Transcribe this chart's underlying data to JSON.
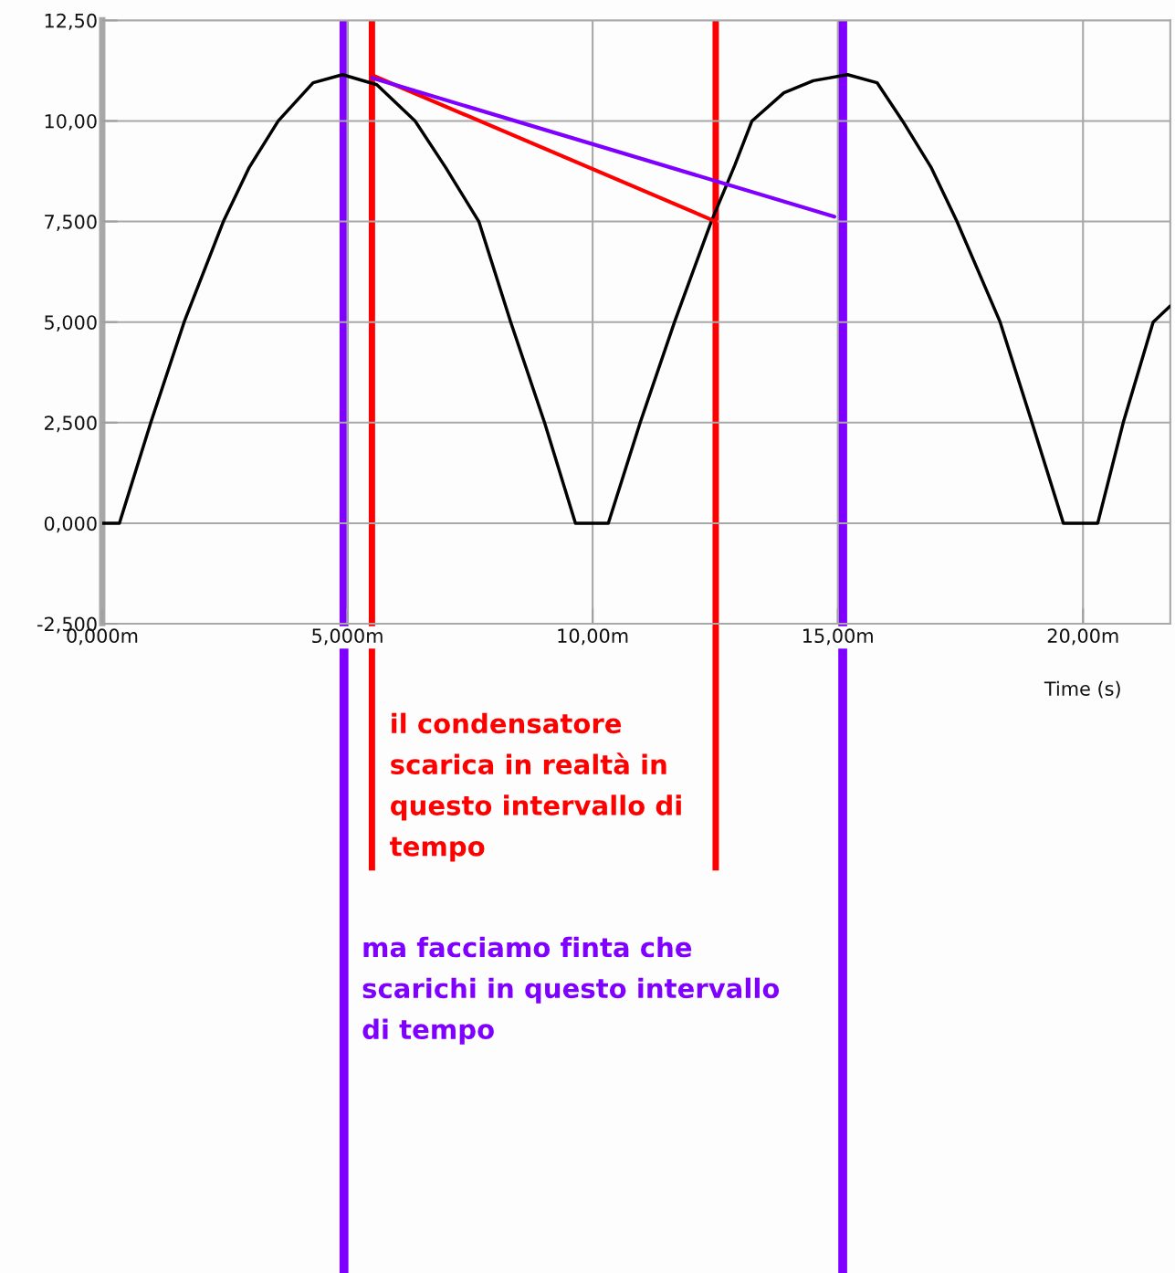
{
  "chart_data": {
    "type": "line",
    "xlabel": "Time (s)",
    "xlim": [
      0,
      21.78
    ],
    "ylim": [
      -2.5,
      12.5
    ],
    "xticks": [
      {
        "value": 0,
        "label": "0,000m"
      },
      {
        "value": 5,
        "label": "5,000m"
      },
      {
        "value": 10,
        "label": "10,00m"
      },
      {
        "value": 15,
        "label": "15,00m"
      },
      {
        "value": 20,
        "label": "20,00m"
      }
    ],
    "yticks": [
      {
        "value": -2.5,
        "label": "-2,500"
      },
      {
        "value": 0,
        "label": "0,000"
      },
      {
        "value": 2.5,
        "label": "2,500"
      },
      {
        "value": 5,
        "label": "5,000"
      },
      {
        "value": 7.5,
        "label": "7,500"
      },
      {
        "value": 10,
        "label": "10,00"
      },
      {
        "value": 12.5,
        "label": "12,50"
      }
    ],
    "grid": true,
    "series": [
      {
        "color": "#000000",
        "x": [
          0,
          0.35,
          0.99,
          1.67,
          2.47,
          3.0,
          3.59,
          4.3,
          4.9,
          5.6,
          6.38,
          7.0,
          7.68,
          8.33,
          9.02,
          9.65,
          10.32,
          10.97,
          11.67,
          12.42,
          12.9,
          13.25,
          13.9,
          14.5,
          15.2,
          15.8,
          16.32,
          16.9,
          17.43,
          18.31,
          18.96,
          19.6,
          20.3,
          20.82,
          21.43,
          21.78
        ],
        "values": [
          0,
          0,
          2.5,
          5.0,
          7.5,
          8.85,
          10.0,
          10.95,
          11.15,
          10.9,
          10.0,
          8.85,
          7.5,
          5.0,
          2.5,
          0,
          0,
          2.5,
          5.0,
          7.5,
          8.9,
          10.0,
          10.7,
          11.0,
          11.15,
          10.95,
          10.0,
          8.85,
          7.5,
          5.0,
          2.5,
          0,
          0,
          2.5,
          5.0,
          5.4
        ]
      },
      {
        "color": "#ff0000",
        "x": [
          5.5,
          12.51
        ],
        "values": [
          11.14,
          7.5
        ]
      },
      {
        "color": "#8000ff",
        "x": [
          5.5,
          14.93
        ],
        "values": [
          11.07,
          7.62
        ]
      }
    ],
    "ref_lines": [
      {
        "axis": "x",
        "value": 5.5,
        "color": "#ff0000",
        "label": "il condensatore\nscarica in realtà in\nquesto intervallo di\ntempo"
      },
      {
        "axis": "x",
        "value": 12.51,
        "color": "#ff0000"
      },
      {
        "axis": "x",
        "value": 4.93,
        "color": "#8000ff",
        "label": "ma facciamo finta che\nscarichi in questo intervallo\ndi tempo"
      },
      {
        "axis": "x",
        "value": 15.1,
        "color": "#8000ff"
      }
    ]
  }
}
